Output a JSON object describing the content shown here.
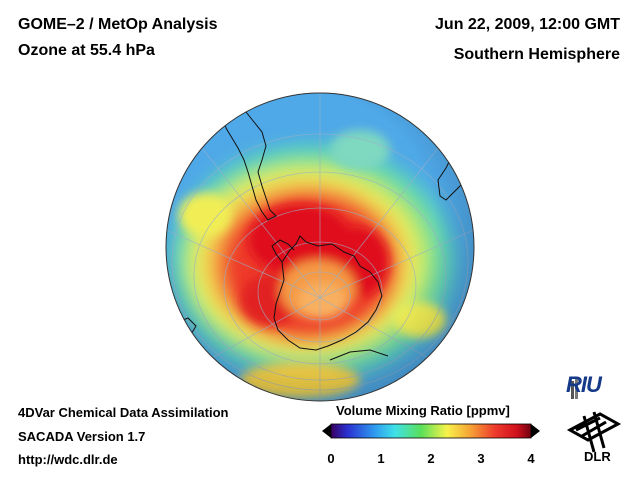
{
  "header": {
    "title": "GOME–2 / MetOp Analysis",
    "subtitle": "Ozone at 55.4 hPa",
    "datetime": "Jun 22, 2009, 12:00 GMT",
    "hemisphere": "Southern Hemisphere"
  },
  "footer": {
    "line1": "4DVar Chemical Data Assimilation",
    "line2": "SACADA Version 1.7",
    "line3": "http://wdc.dlr.de"
  },
  "colorbar": {
    "title": "Volume Mixing Ratio [ppmv]",
    "ticks": [
      "0",
      "1",
      "2",
      "3",
      "4"
    ],
    "min": 0,
    "max": 4
  },
  "logos": {
    "riu": "RIU",
    "dlr": "DLR"
  },
  "colors": {
    "ocean": "#4fa8e8",
    "ozone_low": "#2a2fd0",
    "ozone_mid": "#f7f24a",
    "ozone_high": "#e6121e",
    "riu": "#163a8a"
  }
}
